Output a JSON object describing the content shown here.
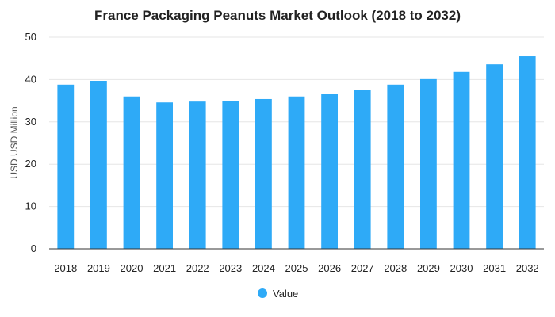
{
  "chart_data": {
    "type": "bar",
    "title": "France Packaging Peanuts Market Outlook (2018 to 2032)",
    "xlabel": "",
    "ylabel": "USD USD Million",
    "categories": [
      "2018",
      "2019",
      "2020",
      "2021",
      "2022",
      "2023",
      "2024",
      "2025",
      "2026",
      "2027",
      "2028",
      "2029",
      "2030",
      "2031",
      "2032"
    ],
    "series": [
      {
        "name": "Value",
        "values": [
          38.8,
          39.7,
          36.0,
          34.6,
          34.8,
          35.0,
          35.4,
          36.0,
          36.7,
          37.5,
          38.8,
          40.1,
          41.8,
          43.6,
          45.5
        ]
      }
    ],
    "ylim": [
      0,
      50
    ],
    "yticks": [
      "0",
      "10",
      "20",
      "30",
      "40",
      "50"
    ],
    "grid": true,
    "legend_position": "bottom",
    "colors": {
      "bar": "#2eaaf7",
      "grid": "#e6e6e6",
      "axis": "#333333"
    }
  }
}
